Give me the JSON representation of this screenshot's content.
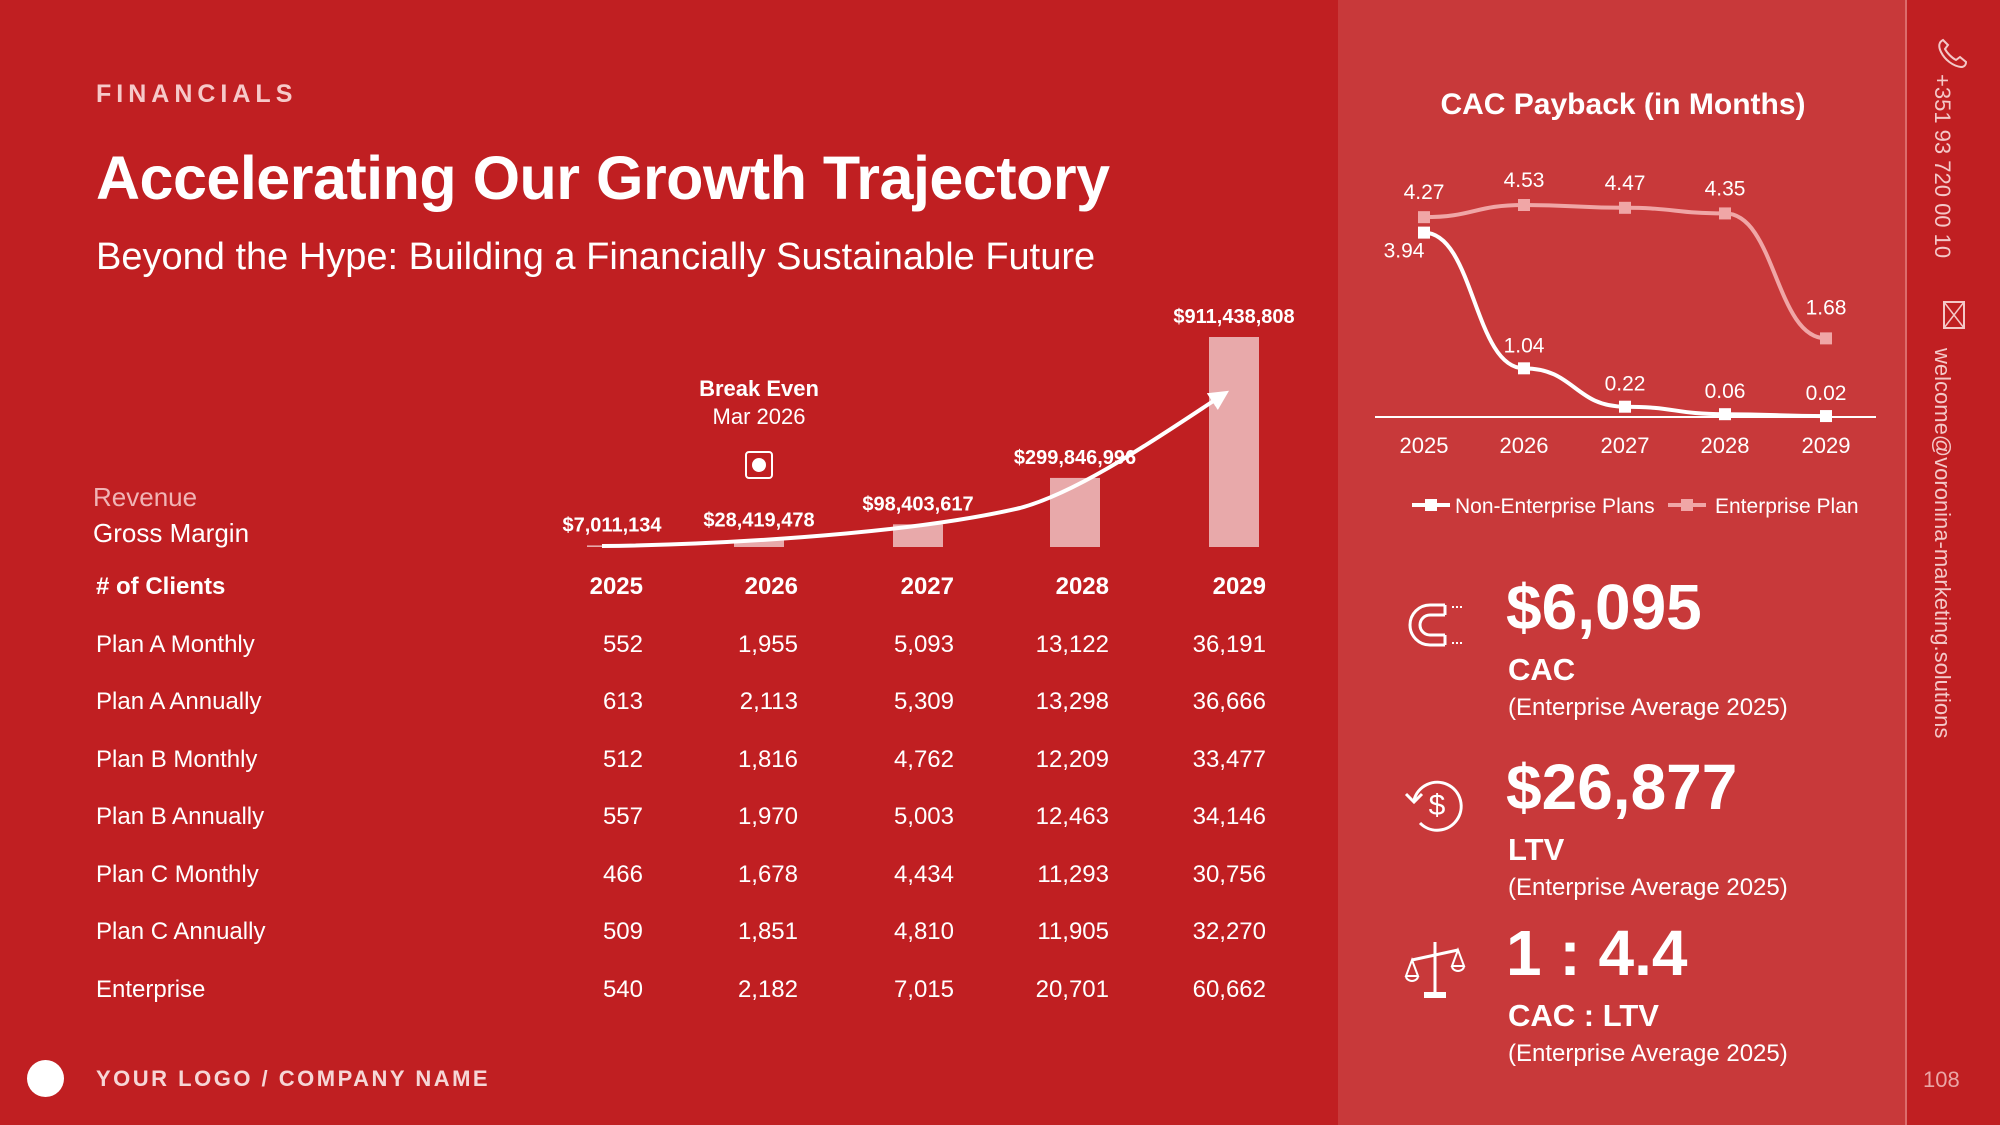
{
  "header": {
    "kicker": "FINANCIALS",
    "title": "Accelerating Our Growth Trajectory",
    "subtitle": "Beyond the Hype: Building a Financially Sustainable Future"
  },
  "legend_left": {
    "revenue": "Revenue",
    "gross_margin": "Gross Margin"
  },
  "break_even": {
    "title": "Break Even",
    "date": "Mar 2026"
  },
  "table": {
    "header": [
      "# of Clients",
      "2025",
      "2026",
      "2027",
      "2028",
      "2029"
    ],
    "rows": [
      [
        "Plan A Monthly",
        "552",
        "1,955",
        "5,093",
        "13,122",
        "36,191"
      ],
      [
        "Plan A Annually",
        "613",
        "2,113",
        "5,309",
        "13,298",
        "36,666"
      ],
      [
        "Plan B Monthly",
        "512",
        "1,816",
        "4,762",
        "12,209",
        "33,477"
      ],
      [
        "Plan B Annually",
        "557",
        "1,970",
        "5,003",
        "12,463",
        "34,146"
      ],
      [
        "Plan C Monthly",
        "466",
        "1,678",
        "4,434",
        "11,293",
        "30,756"
      ],
      [
        "Plan C Annually",
        "509",
        "1,851",
        "4,810",
        "11,905",
        "32,270"
      ],
      [
        "Enterprise",
        "540",
        "2,182",
        "7,015",
        "20,701",
        "60,662"
      ]
    ]
  },
  "footer": {
    "logo_text": "YOUR LOGO / COMPANY NAME"
  },
  "kpis": [
    {
      "value": "$6,095",
      "label": "CAC",
      "note": "(Enterprise Average 2025)",
      "icon": "magnet-icon"
    },
    {
      "value": "$26,877",
      "label": "LTV",
      "note": "(Enterprise Average 2025)",
      "icon": "dollar-cycle-icon"
    },
    {
      "value": "1 : 4.4",
      "label": "CAC : LTV",
      "note": "(Enterprise Average 2025)",
      "icon": "scale-icon"
    }
  ],
  "contact": {
    "phone": "+351 93 720 00 10",
    "email": "welcome@voronina-marketing.solutions"
  },
  "page_number": "108",
  "colors": {
    "background": "#c01f22",
    "panel": "#c8393a",
    "bar": "#e8a9aa",
    "enterprise_line": "#f0a6a6",
    "non_enterprise_line": "#ffffff"
  },
  "chart_data": [
    {
      "type": "bar",
      "categories": [
        "2025",
        "2026",
        "2027",
        "2028",
        "2029"
      ],
      "series": [
        {
          "name": "Revenue",
          "values": [
            7011134,
            28419478,
            98403617,
            299846996,
            911438808
          ]
        }
      ],
      "value_labels": [
        "$7,011,134",
        "$28,419,478",
        "$98,403,617",
        "$299,846,996",
        "$911,438,808"
      ],
      "ylim": [
        0,
        911438808
      ],
      "annotations": [
        "Break Even",
        "Mar 2026"
      ]
    },
    {
      "type": "line",
      "title": "CAC Payback (in Months)",
      "categories": [
        "2025",
        "2026",
        "2027",
        "2028",
        "2029"
      ],
      "series": [
        {
          "name": "Non-Enterprise Plans",
          "values": [
            3.94,
            1.04,
            0.22,
            0.06,
            0.02
          ]
        },
        {
          "name": "Enterprise Plan",
          "values": [
            4.27,
            4.53,
            4.47,
            4.35,
            1.68
          ]
        }
      ],
      "ylim": [
        0,
        4.53
      ],
      "grid": false,
      "legend_position": "bottom"
    }
  ]
}
